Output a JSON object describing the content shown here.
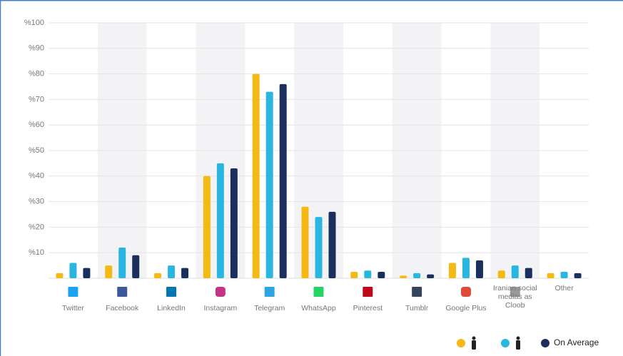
{
  "chart_data": {
    "type": "bar",
    "categories": [
      "Twitter",
      "Facebook",
      "LinkedIn",
      "Instagram",
      "Telegram",
      "WhatsApp",
      "Pinterest",
      "Tumblr",
      "Google Plus",
      "Iranian social medias as Cloob",
      "Other"
    ],
    "series": [
      {
        "color": "#f5b914",
        "values": [
          2,
          5,
          2,
          40,
          80,
          28,
          2.5,
          1,
          6,
          3,
          2
        ]
      },
      {
        "color": "#29b6e0",
        "values": [
          6,
          12,
          5,
          45,
          73,
          24,
          3,
          2,
          8,
          5,
          2.5
        ]
      },
      {
        "name": "On Average",
        "color": "#1b2f5e",
        "values": [
          4,
          9,
          4,
          43,
          76,
          26,
          2.5,
          1.5,
          7,
          4,
          2
        ]
      }
    ],
    "ylim": [
      0,
      100
    ],
    "yticks": [
      {
        "value": 10,
        "label": "%10"
      },
      {
        "value": 20,
        "label": "%20"
      },
      {
        "value": 30,
        "label": "%30"
      },
      {
        "value": 40,
        "label": "%40"
      },
      {
        "value": 50,
        "label": "%50"
      },
      {
        "value": 60,
        "label": "%60"
      },
      {
        "value": 70,
        "label": "%70"
      },
      {
        "value": 80,
        "label": "%80"
      },
      {
        "value": 90,
        "label": "%90"
      },
      {
        "value": 100,
        "label": "%100"
      }
    ],
    "grid": true
  }
}
